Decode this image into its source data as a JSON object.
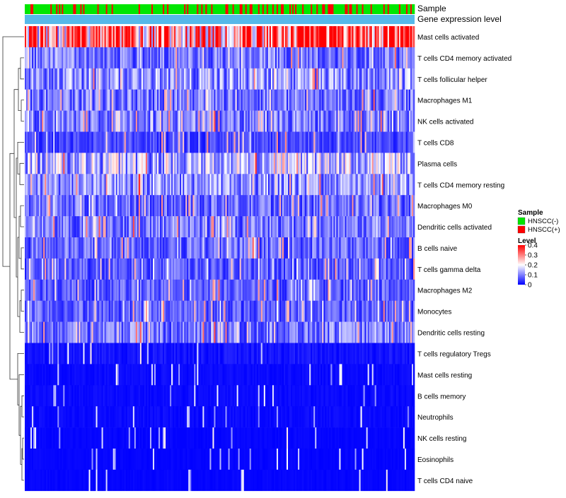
{
  "chart_data": {
    "type": "heatmap",
    "title": "",
    "annotations": [
      {
        "name": "Sample",
        "kind": "categorical"
      },
      {
        "name": "Gene expression level",
        "kind": "constant",
        "color": "#56b8e9"
      }
    ],
    "row_labels": [
      "Mast cells activated",
      "T cells CD4 memory activated",
      "T cells follicular helper",
      "Macrophages M1",
      "NK cells activated",
      "T cells CD8",
      "Plasma cells",
      "T cells CD4 memory resting",
      "Macrophages M0",
      "Dendritic cells activated",
      "B cells naive",
      "T cells gamma delta",
      "Macrophages M2",
      "Monocytes",
      "Dendritic cells resting",
      "T cells regulatory  Tregs",
      "Mast cells resting",
      "B cells memory",
      "Neutrophils",
      "NK cells resting",
      "Eosinophils",
      "T cells CD4 naive"
    ],
    "row_mean_levels": [
      0.27,
      0.09,
      0.11,
      0.09,
      0.09,
      0.05,
      0.14,
      0.11,
      0.08,
      0.09,
      0.08,
      0.07,
      0.07,
      0.07,
      0.09,
      0.02,
      0.01,
      0.01,
      0.01,
      0.005,
      0.005,
      0.005
    ],
    "samples_count": 274,
    "legend": {
      "sample": {
        "title": "Sample",
        "items": [
          {
            "label": "HNSCC(-)",
            "color": "#00e600"
          },
          {
            "label": "HNSCC(+)",
            "color": "#ff0000"
          }
        ]
      },
      "level": {
        "title": "Level",
        "ticks": [
          "0.4",
          "0.3",
          "0.2",
          "0.1",
          "0"
        ],
        "tick_values": [
          0.4,
          0.3,
          0.2,
          0.1,
          0
        ],
        "range": [
          0,
          0.4
        ],
        "colors": [
          "#0000ff",
          "#ffffff",
          "#ff0000"
        ]
      }
    }
  }
}
